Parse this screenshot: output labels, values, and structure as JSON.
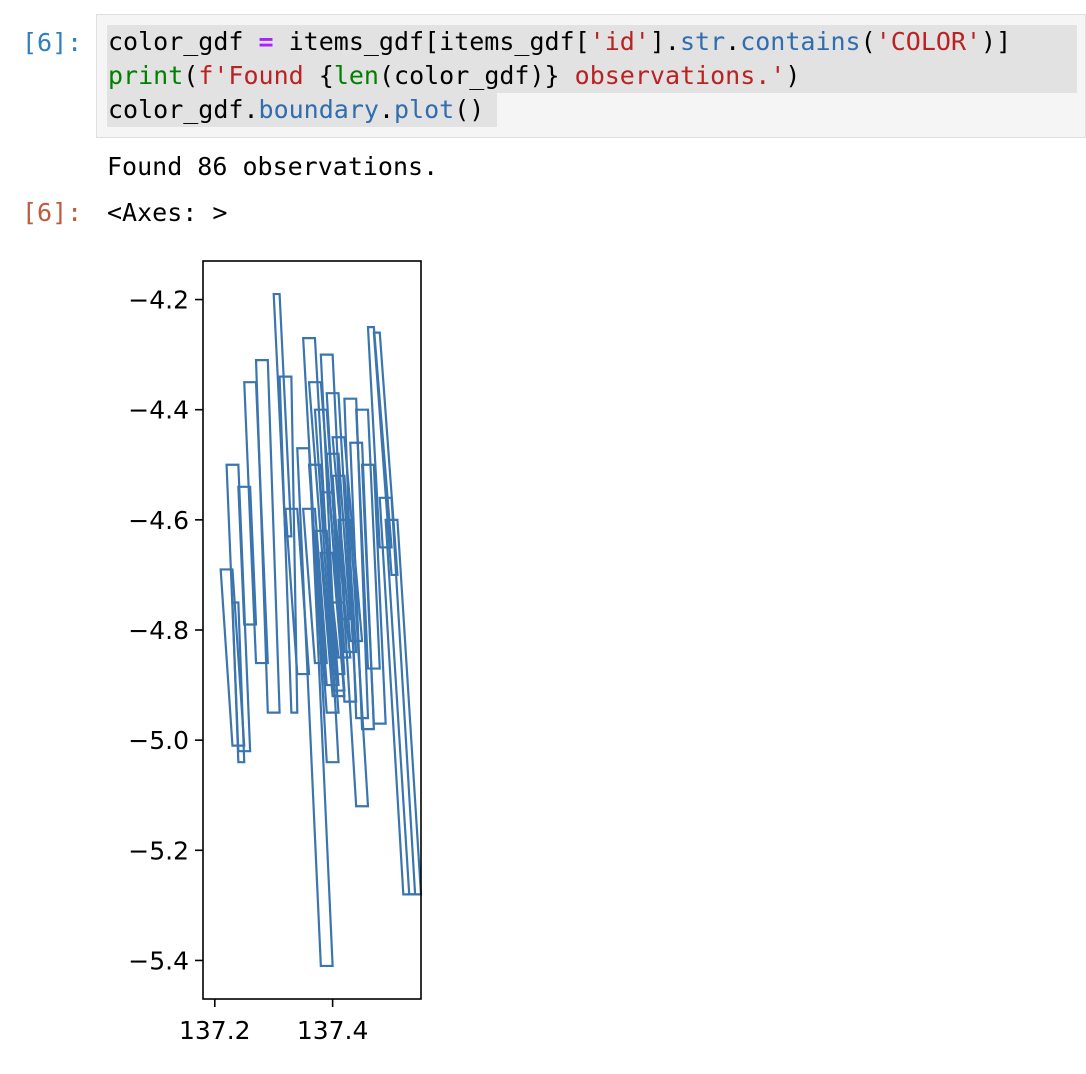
{
  "cell": {
    "input_prompt": "[6]:",
    "output_prompt": "[6]:",
    "code_lines": [
      [
        {
          "t": "color_gdf ",
          "c": ""
        },
        {
          "t": "=",
          "c": "op"
        },
        {
          "t": " items_gdf[items_gdf[",
          "c": ""
        },
        {
          "t": "'id'",
          "c": "str"
        },
        {
          "t": "].",
          "c": ""
        },
        {
          "t": "str",
          "c": "attr"
        },
        {
          "t": ".",
          "c": ""
        },
        {
          "t": "contains",
          "c": "attr"
        },
        {
          "t": "(",
          "c": ""
        },
        {
          "t": "'COLOR'",
          "c": "str"
        },
        {
          "t": ")]",
          "c": ""
        }
      ],
      [
        {
          "t": "print",
          "c": "fn"
        },
        {
          "t": "(",
          "c": ""
        },
        {
          "t": "f'Found ",
          "c": "str"
        },
        {
          "t": "{",
          "c": ""
        },
        {
          "t": "len",
          "c": "fn"
        },
        {
          "t": "(color_gdf)}",
          "c": ""
        },
        {
          "t": " observations.'",
          "c": "str"
        },
        {
          "t": ")",
          "c": ""
        }
      ],
      [
        {
          "t": "color_gdf.",
          "c": ""
        },
        {
          "t": "boundary",
          "c": "attr"
        },
        {
          "t": ".",
          "c": ""
        },
        {
          "t": "plot",
          "c": "attr"
        },
        {
          "t": "()",
          "c": ""
        }
      ]
    ],
    "stdout": "Found 86 observations.",
    "result_repr": "<Axes: >"
  },
  "colors": {
    "series": "#3b75af",
    "input_prompt": "#307fc1",
    "output_prompt": "#bf5b3d"
  },
  "chart_data": {
    "type": "geo-boundary-plot",
    "title": "",
    "xlabel": "",
    "ylabel": "",
    "xlim": [
      137.18,
      137.55
    ],
    "ylim": [
      -5.47,
      -4.13
    ],
    "xticks": [
      137.2,
      137.4
    ],
    "xtick_labels": [
      "137.2",
      "137.4"
    ],
    "yticks": [
      -4.2,
      -4.4,
      -4.6,
      -4.8,
      -5.0,
      -5.2,
      -5.4
    ],
    "ytick_labels": [
      "−4.2",
      "−4.4",
      "−4.6",
      "−4.8",
      "−5.0",
      "−5.2",
      "−5.4"
    ],
    "grid": false,
    "series": [
      {
        "footprints": [
          {
            "x": [
              137.21,
              137.23,
              137.25,
              137.23
            ],
            "y": [
              -4.69,
              -4.69,
              -5.01,
              -5.01
            ]
          },
          {
            "x": [
              137.22,
              137.24,
              137.26,
              137.24
            ],
            "y": [
              -4.5,
              -4.5,
              -5.02,
              -5.02
            ]
          },
          {
            "x": [
              137.23,
              137.24,
              137.25,
              137.24
            ],
            "y": [
              -4.75,
              -4.75,
              -5.04,
              -5.04
            ]
          },
          {
            "x": [
              137.24,
              137.26,
              137.27,
              137.25
            ],
            "y": [
              -4.54,
              -4.54,
              -4.79,
              -4.79
            ]
          },
          {
            "x": [
              137.25,
              137.27,
              137.29,
              137.27
            ],
            "y": [
              -4.35,
              -4.35,
              -4.86,
              -4.86
            ]
          },
          {
            "x": [
              137.27,
              137.29,
              137.31,
              137.29
            ],
            "y": [
              -4.31,
              -4.31,
              -4.95,
              -4.95
            ]
          },
          {
            "x": [
              137.3,
              137.31,
              137.33,
              137.32
            ],
            "y": [
              -4.19,
              -4.19,
              -4.63,
              -4.63
            ]
          },
          {
            "x": [
              137.31,
              137.33,
              137.34,
              137.33
            ],
            "y": [
              -4.34,
              -4.34,
              -4.95,
              -4.95
            ]
          },
          {
            "x": [
              137.32,
              137.34,
              137.36,
              137.34
            ],
            "y": [
              -4.58,
              -4.58,
              -4.88,
              -4.88
            ]
          },
          {
            "x": [
              137.34,
              137.36,
              137.4,
              137.38
            ],
            "y": [
              -4.47,
              -4.47,
              -5.41,
              -5.41
            ]
          },
          {
            "x": [
              137.35,
              137.37,
              137.41,
              137.39
            ],
            "y": [
              -4.27,
              -4.27,
              -5.04,
              -5.04
            ]
          },
          {
            "x": [
              137.36,
              137.38,
              137.42,
              137.4
            ],
            "y": [
              -4.35,
              -4.35,
              -4.91,
              -4.91
            ]
          },
          {
            "x": [
              137.37,
              137.39,
              137.42,
              137.4
            ],
            "y": [
              -4.4,
              -4.4,
              -4.88,
              -4.88
            ]
          },
          {
            "x": [
              137.38,
              137.4,
              137.42,
              137.4
            ],
            "y": [
              -4.3,
              -4.3,
              -4.75,
              -4.75
            ]
          },
          {
            "x": [
              137.39,
              137.41,
              137.44,
              137.42
            ],
            "y": [
              -4.37,
              -4.37,
              -4.93,
              -4.93
            ]
          },
          {
            "x": [
              137.4,
              137.42,
              137.45,
              137.43
            ],
            "y": [
              -4.45,
              -4.45,
              -4.82,
              -4.82
            ]
          },
          {
            "x": [
              137.41,
              137.43,
              137.46,
              137.44
            ],
            "y": [
              -4.6,
              -4.6,
              -5.12,
              -5.12
            ]
          },
          {
            "x": [
              137.42,
              137.44,
              137.46,
              137.44
            ],
            "y": [
              -4.38,
              -4.38,
              -4.96,
              -4.96
            ]
          },
          {
            "x": [
              137.43,
              137.45,
              137.47,
              137.45
            ],
            "y": [
              -4.46,
              -4.46,
              -4.98,
              -4.98
            ]
          },
          {
            "x": [
              137.44,
              137.46,
              137.48,
              137.46
            ],
            "y": [
              -4.4,
              -4.4,
              -4.87,
              -4.87
            ]
          },
          {
            "x": [
              137.45,
              137.47,
              137.49,
              137.47
            ],
            "y": [
              -4.5,
              -4.5,
              -4.97,
              -4.97
            ]
          },
          {
            "x": [
              137.46,
              137.47,
              137.5,
              137.48
            ],
            "y": [
              -4.25,
              -4.25,
              -4.65,
              -4.65
            ]
          },
          {
            "x": [
              137.47,
              137.48,
              137.51,
              137.5
            ],
            "y": [
              -4.26,
              -4.26,
              -4.7,
              -4.7
            ]
          },
          {
            "x": [
              137.48,
              137.5,
              137.54,
              137.52
            ],
            "y": [
              -4.56,
              -4.56,
              -5.28,
              -5.28
            ]
          },
          {
            "x": [
              137.49,
              137.51,
              137.55,
              137.53
            ],
            "y": [
              -4.6,
              -4.6,
              -5.28,
              -5.28
            ]
          },
          {
            "x": [
              137.36,
              137.38,
              137.41,
              137.39
            ],
            "y": [
              -4.5,
              -4.5,
              -4.95,
              -4.95
            ]
          },
          {
            "x": [
              137.38,
              137.4,
              137.43,
              137.41
            ],
            "y": [
              -4.55,
              -4.55,
              -4.85,
              -4.85
            ]
          },
          {
            "x": [
              137.37,
              137.39,
              137.41,
              137.39
            ],
            "y": [
              -4.62,
              -4.62,
              -4.9,
              -4.9
            ]
          },
          {
            "x": [
              137.39,
              137.41,
              137.43,
              137.41
            ],
            "y": [
              -4.48,
              -4.48,
              -4.78,
              -4.78
            ]
          },
          {
            "x": [
              137.35,
              137.37,
              137.39,
              137.37
            ],
            "y": [
              -4.58,
              -4.58,
              -4.86,
              -4.86
            ]
          },
          {
            "x": [
              137.4,
              137.42,
              137.44,
              137.42
            ],
            "y": [
              -4.52,
              -4.52,
              -4.84,
              -4.84
            ]
          },
          {
            "x": [
              137.38,
              137.4,
              137.42,
              137.4
            ],
            "y": [
              -4.66,
              -4.66,
              -4.92,
              -4.92
            ]
          }
        ]
      }
    ]
  }
}
